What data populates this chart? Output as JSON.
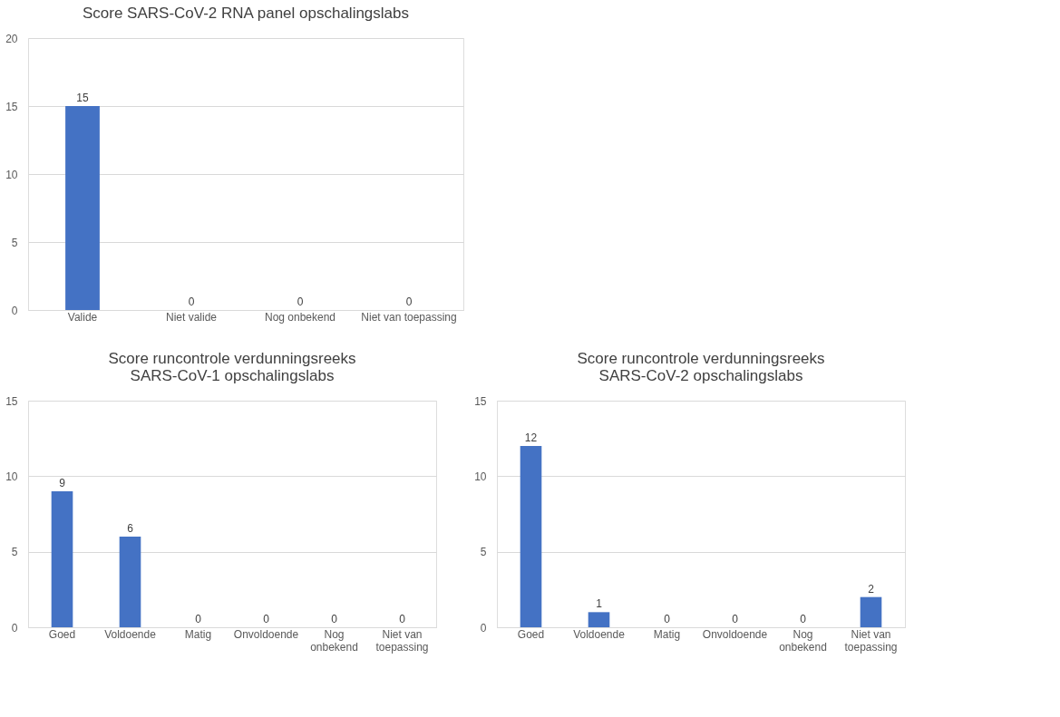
{
  "chart_data": [
    {
      "type": "bar",
      "title": "Score SARS-CoV-2 RNA panel opschalingslabs",
      "categories": [
        "Valide",
        "Niet valide",
        "Nog onbekend",
        "Niet van toepassing"
      ],
      "values": [
        15,
        0,
        0,
        0
      ],
      "color": "#4472c4",
      "ylim": [
        0,
        20
      ],
      "yticks": [
        0,
        5,
        10,
        15,
        20
      ],
      "grid": "y",
      "data_labels": true
    },
    {
      "type": "bar",
      "title": "Score runcontrole verdunningsreeks\nSARS-CoV-1 opschalingslabs",
      "categories": [
        "Goed",
        "Voldoende",
        "Matig",
        "Onvoldoende",
        "Nog onbekend",
        "Niet van toepassing"
      ],
      "values": [
        9,
        6,
        0,
        0,
        0,
        0
      ],
      "color": "#4472c4",
      "ylim": [
        0,
        15
      ],
      "yticks": [
        0,
        5,
        10,
        15
      ],
      "grid": "y",
      "data_labels": true
    },
    {
      "type": "bar",
      "title": "Score runcontrole verdunningsreeks\nSARS-CoV-2 opschalingslabs",
      "categories": [
        "Goed",
        "Voldoende",
        "Matig",
        "Onvoldoende",
        "Nog onbekend",
        "Niet van toepassing"
      ],
      "values": [
        12,
        1,
        0,
        0,
        0,
        2
      ],
      "color": "#4472c4",
      "ylim": [
        0,
        15
      ],
      "yticks": [
        0,
        5,
        10,
        15
      ],
      "grid": "y",
      "data_labels": true
    }
  ]
}
